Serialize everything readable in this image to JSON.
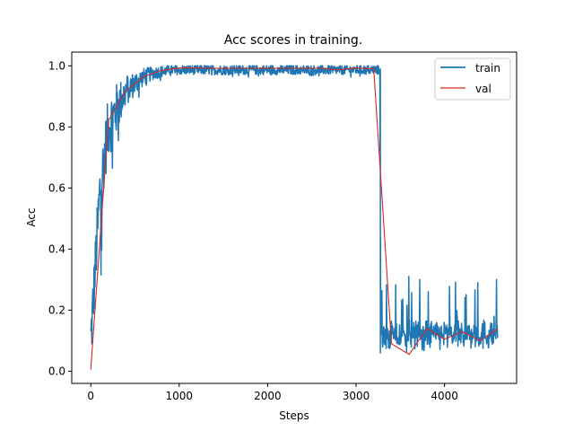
{
  "chart_data": {
    "type": "line",
    "title": "Acc scores in training.",
    "xlabel": "Steps",
    "ylabel": "Acc",
    "xlim": [
      -215,
      4815
    ],
    "ylim": [
      -0.04,
      1.045
    ],
    "xticks": [
      0,
      1000,
      2000,
      3000,
      4000
    ],
    "xtick_labels": [
      "0",
      "1000",
      "2000",
      "3000",
      "4000"
    ],
    "yticks": [
      0.0,
      0.2,
      0.4,
      0.6,
      0.8,
      1.0
    ],
    "ytick_labels": [
      "0.0",
      "0.2",
      "0.4",
      "0.6",
      "0.8",
      "1.0"
    ],
    "grid": false,
    "legend_position": "top-right",
    "series": [
      {
        "name": "train",
        "color": "#1f77b4",
        "style": "noisy-line",
        "x": [
          0,
          50,
          100,
          150,
          200,
          300,
          400,
          500,
          600,
          700,
          800,
          900,
          1000,
          1200,
          1500,
          1800,
          2100,
          2400,
          2700,
          3000,
          3200,
          3270,
          3280,
          3350,
          3400,
          3500,
          3600,
          3700,
          3800,
          3900,
          4000,
          4100,
          4200,
          4300,
          4400,
          4500,
          4600
        ],
        "values": [
          0.12,
          0.35,
          0.6,
          0.72,
          0.82,
          0.88,
          0.93,
          0.95,
          0.97,
          0.98,
          0.985,
          0.99,
          0.99,
          0.99,
          0.99,
          0.99,
          0.99,
          0.99,
          0.99,
          0.99,
          0.99,
          0.99,
          0.1,
          0.11,
          0.12,
          0.11,
          0.12,
          0.12,
          0.12,
          0.12,
          0.12,
          0.12,
          0.12,
          0.12,
          0.12,
          0.12,
          0.13
        ]
      },
      {
        "name": "val",
        "color": "#d62728",
        "style": "line",
        "x": [
          0,
          200,
          400,
          600,
          800,
          1000,
          1200,
          1400,
          1600,
          1800,
          2000,
          2200,
          2400,
          2600,
          2800,
          3000,
          3200,
          3400,
          3600,
          3800,
          4000,
          4200,
          4400,
          4600
        ],
        "values": [
          0.005,
          0.82,
          0.92,
          0.965,
          0.985,
          0.993,
          0.993,
          0.992,
          0.992,
          0.992,
          0.992,
          0.992,
          0.992,
          0.992,
          0.987,
          0.993,
          0.99,
          0.09,
          0.055,
          0.14,
          0.105,
          0.13,
          0.1,
          0.138
        ]
      }
    ]
  }
}
